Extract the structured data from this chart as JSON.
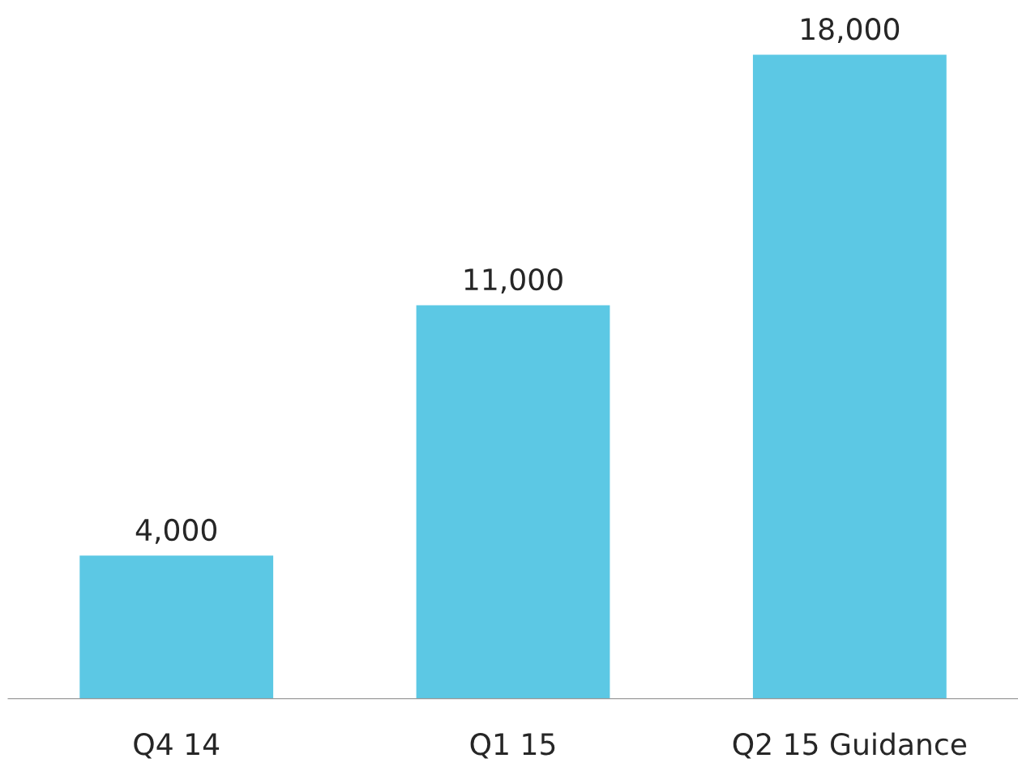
{
  "chart_data": {
    "type": "bar",
    "categories": [
      "Q4 14",
      "Q1 15",
      "Q2 15 Guidance"
    ],
    "values": [
      4000,
      11000,
      18000
    ],
    "color": "#5cc8e4",
    "value_labels": [
      "4,000",
      "11,000",
      "18,000"
    ],
    "grid": false,
    "legend": false
  }
}
